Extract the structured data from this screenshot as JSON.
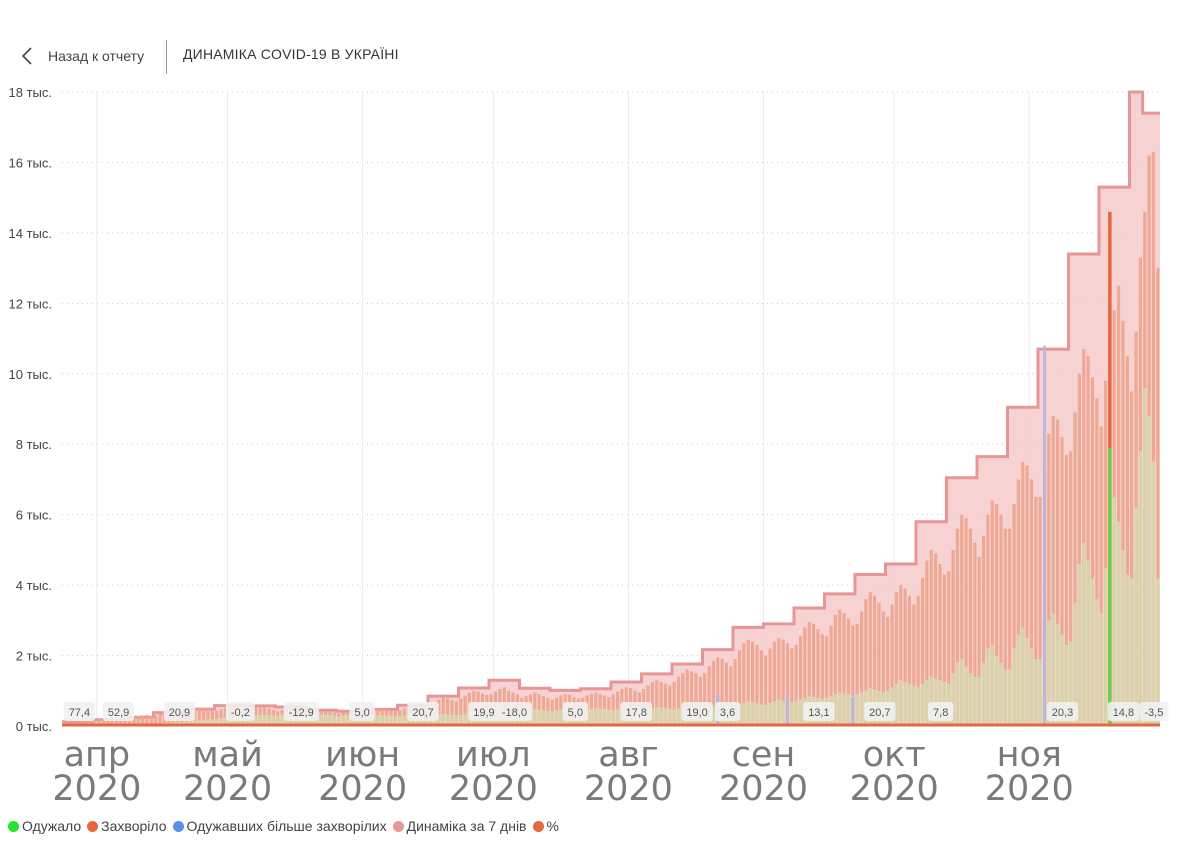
{
  "header": {
    "back_label": "Назад к отчету",
    "title": "ДИНАМІКА COVID-19 В УКРАЇНІ"
  },
  "colors": {
    "recovered": "#23e52d",
    "sick": "#e4673e",
    "recovered_more": "#5a8fe8",
    "dynamics": "#e79796",
    "percent": "#e4673e",
    "band_fill": "#f6caca",
    "band_line": "#e79596",
    "bar_sick": "#eda590",
    "bar_recovered": "#d3d7a9"
  },
  "legend": [
    {
      "label": "Одужало",
      "color": "#23e52d"
    },
    {
      "label": "Захворіло",
      "color": "#e4673e"
    },
    {
      "label": "Одужавших більше захворілих",
      "color": "#5a8fe8"
    },
    {
      "label": "Динаміка за 7 днів",
      "color": "#e79796"
    },
    {
      "label": "%",
      "color": "#e4673e"
    }
  ],
  "chart_data": {
    "type": "bar",
    "y_ticks": [
      "0 тыс.",
      "2 тыс.",
      "4 тыс.",
      "6 тыс.",
      "8 тыс.",
      "10 тыс.",
      "12 тыс.",
      "14 тыс.",
      "16 тыс.",
      "18 тыс."
    ],
    "ylim": [
      0,
      18000
    ],
    "grid": true,
    "x_ticks": [
      {
        "month": "апр",
        "year": "2020",
        "day": 0
      },
      {
        "month": "май",
        "year": "2020",
        "day": 30
      },
      {
        "month": "июн",
        "year": "2020",
        "day": 61
      },
      {
        "month": "июл",
        "year": "2020",
        "day": 91
      },
      {
        "month": "авг",
        "year": "2020",
        "day": 122
      },
      {
        "month": "сен",
        "year": "2020",
        "day": 153
      },
      {
        "month": "окт",
        "year": "2020",
        "day": 183
      },
      {
        "month": "ноя",
        "year": "2020",
        "day": 214
      }
    ],
    "x_start": "2020-03-23",
    "x_end": "2020-11-29",
    "weekly_dynamics_7d": [
      {
        "start": "2020-03-23",
        "value": 120
      },
      {
        "start": "2020-03-30",
        "value": 180
      },
      {
        "start": "2020-04-06",
        "value": 250
      },
      {
        "start": "2020-04-13",
        "value": 380
      },
      {
        "start": "2020-04-20",
        "value": 480
      },
      {
        "start": "2020-04-27",
        "value": 580
      },
      {
        "start": "2020-05-04",
        "value": 570
      },
      {
        "start": "2020-05-11",
        "value": 540
      },
      {
        "start": "2020-05-18",
        "value": 450
      },
      {
        "start": "2020-05-25",
        "value": 420
      },
      {
        "start": "2020-06-01",
        "value": 470
      },
      {
        "start": "2020-06-08",
        "value": 590
      },
      {
        "start": "2020-06-15",
        "value": 850
      },
      {
        "start": "2020-06-22",
        "value": 1080
      },
      {
        "start": "2020-06-29",
        "value": 1300
      },
      {
        "start": "2020-07-06",
        "value": 1070
      },
      {
        "start": "2020-07-13",
        "value": 1010
      },
      {
        "start": "2020-07-20",
        "value": 1060
      },
      {
        "start": "2020-07-27",
        "value": 1250
      },
      {
        "start": "2020-08-03",
        "value": 1480
      },
      {
        "start": "2020-08-10",
        "value": 1760
      },
      {
        "start": "2020-08-17",
        "value": 2170
      },
      {
        "start": "2020-08-24",
        "value": 2800
      },
      {
        "start": "2020-08-31",
        "value": 2900
      },
      {
        "start": "2020-09-07",
        "value": 3350
      },
      {
        "start": "2020-09-14",
        "value": 3750
      },
      {
        "start": "2020-09-21",
        "value": 4300
      },
      {
        "start": "2020-09-28",
        "value": 4600
      },
      {
        "start": "2020-10-05",
        "value": 5800
      },
      {
        "start": "2020-10-12",
        "value": 7050
      },
      {
        "start": "2020-10-19",
        "value": 7650
      },
      {
        "start": "2020-10-26",
        "value": 9050
      },
      {
        "start": "2020-11-02",
        "value": 10700
      },
      {
        "start": "2020-11-09",
        "value": 13400
      },
      {
        "start": "2020-11-16",
        "value": 15300
      },
      {
        "start": "2020-11-23",
        "value": 18000
      },
      {
        "start": "2020-11-26",
        "value": 17400
      }
    ],
    "daily_sick_by_week": [
      {
        "start": "2020-03-23",
        "values": [
          40,
          60,
          80,
          90,
          120,
          140,
          160
        ]
      },
      {
        "start": "2020-03-30",
        "values": [
          120,
          150,
          170,
          190,
          200,
          180,
          210
        ]
      },
      {
        "start": "2020-04-06",
        "values": [
          200,
          220,
          260,
          280,
          300,
          310,
          280
        ]
      },
      {
        "start": "2020-04-13",
        "values": [
          300,
          340,
          380,
          420,
          440,
          400,
          360
        ]
      },
      {
        "start": "2020-04-20",
        "values": [
          380,
          420,
          470,
          500,
          520,
          470,
          430
        ]
      },
      {
        "start": "2020-04-27",
        "values": [
          430,
          480,
          520,
          550,
          560,
          520,
          480
        ]
      },
      {
        "start": "2020-05-04",
        "values": [
          460,
          500,
          530,
          560,
          540,
          500,
          460
        ]
      },
      {
        "start": "2020-05-11",
        "values": [
          420,
          460,
          500,
          520,
          480,
          450,
          420
        ]
      },
      {
        "start": "2020-05-18",
        "values": [
          380,
          410,
          430,
          440,
          420,
          400,
          380
        ]
      },
      {
        "start": "2020-05-25",
        "values": [
          350,
          380,
          400,
          420,
          400,
          380,
          360
        ]
      },
      {
        "start": "2020-06-01",
        "values": [
          380,
          420,
          450,
          470,
          460,
          440,
          420
        ]
      },
      {
        "start": "2020-06-08",
        "values": [
          450,
          500,
          560,
          580,
          560,
          540,
          520
        ]
      },
      {
        "start": "2020-06-15",
        "values": [
          600,
          680,
          750,
          800,
          780,
          740,
          700
        ]
      },
      {
        "start": "2020-06-22",
        "values": [
          780,
          860,
          940,
          1000,
          980,
          920,
          880
        ]
      },
      {
        "start": "2020-06-29",
        "values": [
          900,
          980,
          1050,
          1100,
          1000,
          950,
          900
        ]
      },
      {
        "start": "2020-07-06",
        "values": [
          800,
          850,
          900,
          950,
          900,
          850,
          800
        ]
      },
      {
        "start": "2020-07-13",
        "values": [
          750,
          800,
          870,
          900,
          880,
          820,
          780
        ]
      },
      {
        "start": "2020-07-20",
        "values": [
          800,
          870,
          920,
          950,
          900,
          860,
          820
        ]
      },
      {
        "start": "2020-07-27",
        "values": [
          900,
          980,
          1050,
          1100,
          1080,
          1000,
          950
        ]
      },
      {
        "start": "2020-08-03",
        "values": [
          1050,
          1150,
          1250,
          1300,
          1250,
          1200,
          1150
        ]
      },
      {
        "start": "2020-08-10",
        "values": [
          1250,
          1400,
          1500,
          1600,
          1550,
          1500,
          1400
        ]
      },
      {
        "start": "2020-08-17",
        "values": [
          1500,
          1700,
          1850,
          1950,
          1900,
          1800,
          1700
        ]
      },
      {
        "start": "2020-08-24",
        "values": [
          1900,
          2150,
          2350,
          2450,
          2400,
          2300,
          2150
        ]
      },
      {
        "start": "2020-08-31",
        "values": [
          2000,
          2200,
          2400,
          2500,
          2450,
          2350,
          2200
        ]
      },
      {
        "start": "2020-09-07",
        "values": [
          2300,
          2550,
          2800,
          2950,
          2900,
          2750,
          2600
        ]
      },
      {
        "start": "2020-09-14",
        "values": [
          2550,
          2850,
          3150,
          3300,
          3200,
          3050,
          2850
        ]
      },
      {
        "start": "2020-09-21",
        "values": [
          2900,
          3250,
          3600,
          3800,
          3700,
          3500,
          3250
        ]
      },
      {
        "start": "2020-09-28",
        "values": [
          3100,
          3450,
          3800,
          4000,
          3900,
          3700,
          3450
        ]
      },
      {
        "start": "2020-10-05",
        "values": [
          3700,
          4200,
          4700,
          5000,
          4900,
          4600,
          4300
        ]
      },
      {
        "start": "2020-10-12",
        "values": [
          4400,
          5000,
          5600,
          6000,
          5900,
          5600,
          5200
        ]
      },
      {
        "start": "2020-10-19",
        "values": [
          4800,
          5400,
          6000,
          6400,
          6300,
          6000,
          5600
        ]
      },
      {
        "start": "2020-10-26",
        "values": [
          5600,
          6300,
          7000,
          7500,
          7400,
          7000,
          6500
        ]
      },
      {
        "start": "2020-11-02",
        "values": [
          6500,
          7400,
          8300,
          8800,
          8700,
          8200,
          7700
        ]
      },
      {
        "start": "2020-11-09",
        "values": [
          7800,
          8900,
          10000,
          10700,
          10500,
          9900,
          9300
        ]
      },
      {
        "start": "2020-11-16",
        "values": [
          8500,
          9800,
          11000,
          11800,
          12500,
          11500,
          10500
        ]
      },
      {
        "start": "2020-11-23",
        "values": [
          9500,
          11200,
          13300,
          14600,
          16200,
          16300,
          13000
        ]
      }
    ],
    "daily_recovered_by_week": [
      {
        "start": "2020-03-23",
        "values": [
          0,
          0,
          5,
          5,
          8,
          10,
          10
        ]
      },
      {
        "start": "2020-03-30",
        "values": [
          10,
          12,
          15,
          20,
          25,
          30,
          30
        ]
      },
      {
        "start": "2020-04-06",
        "values": [
          30,
          35,
          40,
          45,
          50,
          50,
          55
        ]
      },
      {
        "start": "2020-04-13",
        "values": [
          60,
          70,
          80,
          90,
          100,
          110,
          110
        ]
      },
      {
        "start": "2020-04-20",
        "values": [
          120,
          140,
          160,
          170,
          180,
          190,
          190
        ]
      },
      {
        "start": "2020-04-27",
        "values": [
          200,
          220,
          240,
          260,
          270,
          270,
          260
        ]
      },
      {
        "start": "2020-05-04",
        "values": [
          260,
          280,
          300,
          320,
          320,
          310,
          300
        ]
      },
      {
        "start": "2020-05-11",
        "values": [
          300,
          320,
          330,
          340,
          330,
          320,
          310
        ]
      },
      {
        "start": "2020-05-18",
        "values": [
          300,
          310,
          320,
          330,
          320,
          310,
          300
        ]
      },
      {
        "start": "2020-05-25",
        "values": [
          280,
          300,
          310,
          320,
          310,
          300,
          290
        ]
      },
      {
        "start": "2020-06-01",
        "values": [
          270,
          290,
          300,
          310,
          300,
          290,
          280
        ]
      },
      {
        "start": "2020-06-08",
        "values": [
          280,
          300,
          310,
          320,
          310,
          300,
          290
        ]
      },
      {
        "start": "2020-06-15",
        "values": [
          290,
          310,
          330,
          340,
          330,
          320,
          310
        ]
      },
      {
        "start": "2020-06-22",
        "values": [
          320,
          340,
          360,
          380,
          370,
          360,
          340
        ]
      },
      {
        "start": "2020-06-29",
        "values": [
          360,
          380,
          400,
          420,
          410,
          400,
          380
        ]
      },
      {
        "start": "2020-07-06",
        "values": [
          400,
          430,
          460,
          480,
          470,
          450,
          430
        ]
      },
      {
        "start": "2020-07-13",
        "values": [
          420,
          450,
          480,
          500,
          490,
          470,
          450
        ]
      },
      {
        "start": "2020-07-20",
        "values": [
          430,
          460,
          490,
          510,
          500,
          480,
          460
        ]
      },
      {
        "start": "2020-07-27",
        "values": [
          440,
          470,
          500,
          520,
          510,
          490,
          470
        ]
      },
      {
        "start": "2020-08-03",
        "values": [
          450,
          480,
          510,
          540,
          530,
          510,
          490
        ]
      },
      {
        "start": "2020-08-10",
        "values": [
          470,
          500,
          530,
          560,
          550,
          530,
          510
        ]
      },
      {
        "start": "2020-08-17",
        "values": [
          500,
          530,
          560,
          590,
          580,
          560,
          540
        ]
      },
      {
        "start": "2020-08-24",
        "values": [
          550,
          600,
          650,
          700,
          680,
          650,
          620
        ]
      },
      {
        "start": "2020-08-31",
        "values": [
          600,
          650,
          700,
          750,
          720,
          700,
          680
        ]
      },
      {
        "start": "2020-09-07",
        "values": [
          700,
          750,
          800,
          850,
          820,
          800,
          770
        ]
      },
      {
        "start": "2020-09-14",
        "values": [
          800,
          850,
          900,
          950,
          920,
          900,
          860
        ]
      },
      {
        "start": "2020-09-21",
        "values": [
          900,
          960,
          1020,
          1080,
          1050,
          1000,
          960
        ]
      },
      {
        "start": "2020-09-28",
        "values": [
          1000,
          1100,
          1200,
          1300,
          1250,
          1200,
          1150
        ]
      },
      {
        "start": "2020-10-05",
        "values": [
          1100,
          1200,
          1300,
          1400,
          1350,
          1300,
          1250
        ]
      },
      {
        "start": "2020-10-12",
        "values": [
          1200,
          1500,
          1800,
          1900,
          1700,
          1500,
          1400
        ]
      },
      {
        "start": "2020-10-19",
        "values": [
          1400,
          1800,
          2200,
          2300,
          2000,
          1800,
          1600
        ]
      },
      {
        "start": "2020-10-26",
        "values": [
          1600,
          2200,
          2600,
          2800,
          2500,
          2200,
          1900
        ]
      },
      {
        "start": "2020-11-02",
        "values": [
          1900,
          2500,
          3000,
          3200,
          2900,
          2600,
          2300
        ]
      },
      {
        "start": "2020-11-09",
        "values": [
          2400,
          3500,
          4600,
          5200,
          4700,
          4200,
          3600
        ]
      },
      {
        "start": "2020-11-16",
        "values": [
          3200,
          4500,
          5900,
          6500,
          5800,
          5000,
          4300
        ]
      },
      {
        "start": "2020-11-23",
        "values": [
          4200,
          6200,
          7800,
          9600,
          8800,
          7500,
          4200
        ]
      }
    ],
    "recovered_more_days": [
      {
        "day": 150,
        "value": 900
      },
      {
        "day": 166,
        "value": 850
      },
      {
        "day": 181,
        "value": 820
      },
      {
        "day": 225,
        "value": 10800
      }
    ],
    "highlight_day": {
      "day": 240,
      "sick": 14600,
      "recovered": 7900
    },
    "percent_labels": [
      {
        "label": "77,4",
        "day": 4
      },
      {
        "label": "52,9",
        "day": 13
      },
      {
        "label": "20,9",
        "day": 27
      },
      {
        "label": "-0,2",
        "day": 41
      },
      {
        "label": "-12,9",
        "day": 55
      },
      {
        "label": "5,0",
        "day": 69
      },
      {
        "label": "20,7",
        "day": 83
      },
      {
        "label": "19,9",
        "day": 97
      },
      {
        "label": "-18,0",
        "day": 104
      },
      {
        "label": "5,0",
        "day": 118
      },
      {
        "label": "17,8",
        "day": 132
      },
      {
        "label": "19,0",
        "day": 146
      },
      {
        "label": "3,6",
        "day": 153
      },
      {
        "label": "13,1",
        "day": 174
      },
      {
        "label": "20,7",
        "day": 188
      },
      {
        "label": "7,8",
        "day": 202
      },
      {
        "label": "20,3",
        "day": 230
      },
      {
        "label": "14,8",
        "day": 244
      },
      {
        "label": "-3,5",
        "day": 251
      }
    ]
  }
}
